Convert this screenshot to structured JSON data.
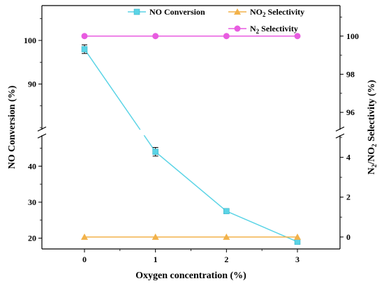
{
  "chart_data": {
    "type": "line",
    "xlabel": "Oxygen concentration (%)",
    "ylabel_left": "NO Conversion (%)",
    "ylabel_right": {
      "base": "N",
      "sub1": "2",
      "mid": "/NO",
      "sub2": "2",
      "tail": " Selectivity (%)"
    },
    "x_ticks": [
      "0",
      "1",
      "2",
      "3"
    ],
    "x_range": [
      -0.6,
      3.6
    ],
    "left_axis": {
      "lower_range": [
        17,
        48
      ],
      "upper_range": [
        80,
        108
      ],
      "lower_ticks": [
        "20",
        "30",
        "40"
      ],
      "upper_ticks": [
        "90",
        "100"
      ]
    },
    "right_axis": {
      "lower_range": [
        -0.6,
        5.0
      ],
      "upper_range": [
        95.2,
        101.6
      ],
      "lower_ticks": [
        "0",
        "2",
        "4"
      ],
      "upper_ticks": [
        "96",
        "98",
        "100"
      ]
    },
    "series": [
      {
        "name": "NO Conversion",
        "axis": "left",
        "marker": "square",
        "color": "#5bd4e6",
        "x": [
          0,
          1,
          2,
          3
        ],
        "y": [
          98,
          44,
          27.5,
          19
        ],
        "error": [
          1.0,
          1.2,
          0.6,
          0.5
        ]
      },
      {
        "name": "NO2 Selectivity",
        "name_parts": {
          "base": "NO",
          "sub": "2",
          "tail": " Selectivity"
        },
        "axis": "right",
        "marker": "triangle",
        "color": "#f2b24a",
        "x": [
          0,
          1,
          2,
          3
        ],
        "y": [
          0,
          0,
          0,
          0
        ]
      },
      {
        "name": "N2 Selectivity",
        "name_parts": {
          "base": "N",
          "sub": "2",
          "tail": " Selectivity"
        },
        "axis": "right",
        "marker": "circle",
        "color": "#e85ce0",
        "x": [
          0,
          1,
          2,
          3
        ],
        "y": [
          100,
          100,
          100,
          100
        ]
      }
    ],
    "legend_position": "top"
  }
}
